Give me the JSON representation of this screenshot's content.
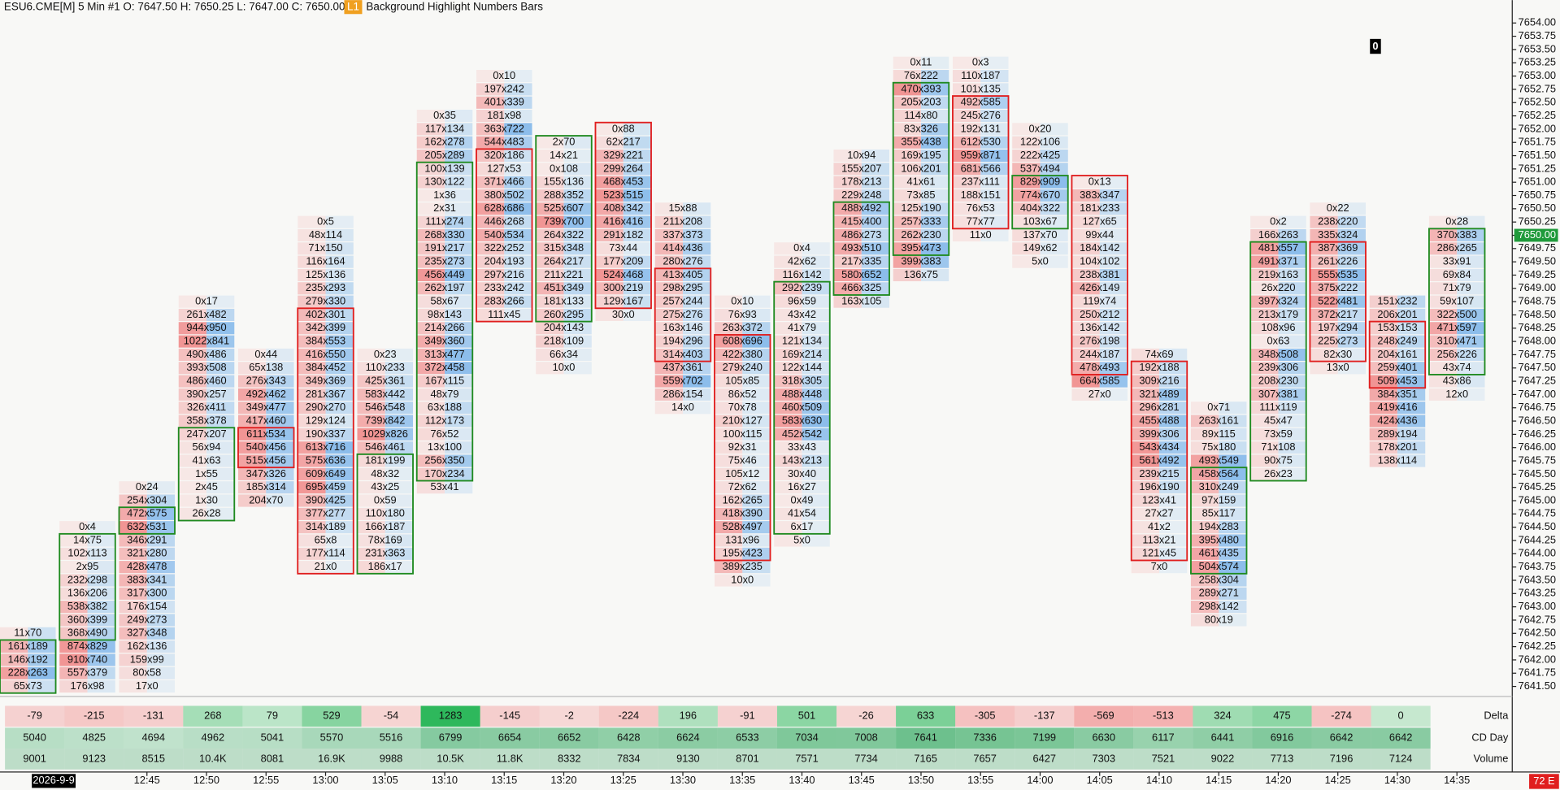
{
  "header": {
    "symbol": "ESU6.CME[M]  5 Min  #1 O: 7647.50 H: 7650.25 L: 7647.00 C: 7650.00",
    "badge": "L1",
    "study": "Background Highlight  Numbers Bars"
  },
  "marker": "0",
  "last_price": "7650.00",
  "status": "72 E",
  "date": "2026-9-9",
  "colors": {
    "up": "#1f8a1f",
    "down": "#e01e1e",
    "bid": "#f08a8a",
    "ask": "#7fb6ea"
  },
  "price_axis": [
    "7654.00",
    "7653.75",
    "7653.50",
    "7653.25",
    "7653.00",
    "7652.75",
    "7652.50",
    "7652.25",
    "7652.00",
    "7651.75",
    "7651.50",
    "7651.25",
    "7651.00",
    "7650.75",
    "7650.50",
    "7650.25",
    "7650.00",
    "7649.75",
    "7649.50",
    "7649.25",
    "7649.00",
    "7648.75",
    "7648.50",
    "7648.25",
    "7648.00",
    "7647.75",
    "7647.50",
    "7647.25",
    "7647.00",
    "7646.75",
    "7646.50",
    "7646.25",
    "7646.00",
    "7645.75",
    "7645.50",
    "7645.25",
    "7645.00",
    "7644.75",
    "7644.50",
    "7644.25",
    "7644.00",
    "7643.75",
    "7643.50",
    "7643.25",
    "7643.00",
    "7642.75",
    "7642.50",
    "7642.25",
    "7642.00",
    "7641.75",
    "7641.50"
  ],
  "times": [
    "12:45",
    "12:50",
    "12:55",
    "13:00",
    "13:05",
    "13:10",
    "13:15",
    "13:20",
    "13:25",
    "13:30",
    "13:35",
    "13:40",
    "13:45",
    "13:50",
    "13:55",
    "14:00",
    "14:05",
    "14:10",
    "14:15",
    "14:20",
    "14:25",
    "14:30",
    "14:35"
  ],
  "bars": [
    {
      "high": 7642.5,
      "dir": "up",
      "body": [
        7642.25,
        7641.5
      ],
      "cells": [
        "11x70",
        "161x189",
        "146x192",
        "228x263",
        "65x73"
      ]
    },
    {
      "high": 7644.5,
      "dir": "up",
      "body": [
        7644.25,
        7642.5
      ],
      "cells": [
        "0x4",
        "14x75",
        "102x113",
        "2x95",
        "232x298",
        "136x206",
        "538x382",
        "360x399",
        "368x490",
        "874x829",
        "910x740",
        "557x379",
        "176x98"
      ]
    },
    {
      "high": 7645.25,
      "dir": "up",
      "body": [
        7644.75,
        7644.5
      ],
      "cells": [
        "0x24",
        "254x304",
        "472x575",
        "632x531",
        "346x291",
        "321x280",
        "428x478",
        "383x341",
        "317x300",
        "176x154",
        "249x273",
        "327x348",
        "162x136",
        "159x99",
        "80x58",
        "17x0"
      ]
    },
    {
      "high": 7648.75,
      "dir": "up",
      "body": [
        7646.25,
        7644.75
      ],
      "cells": [
        "0x17",
        "261x482",
        "944x950",
        "1022x841",
        "490x486",
        "393x508",
        "486x460",
        "390x257",
        "326x411",
        "358x378",
        "247x207",
        "56x94",
        "41x63",
        "1x55",
        "2x45",
        "1x30",
        "26x28"
      ]
    },
    {
      "high": 7647.75,
      "dir": "down",
      "body": [
        7646.25,
        7645.75
      ],
      "cells": [
        "0x44",
        "65x138",
        "276x343",
        "492x462",
        "349x477",
        "417x460",
        "611x534",
        "540x456",
        "515x456",
        "347x326",
        "185x314",
        "204x70"
      ]
    },
    {
      "high": 7650.25,
      "dir": "down",
      "body": [
        7648.5,
        7643.75
      ],
      "cells": [
        "0x5",
        "48x114",
        "71x150",
        "116x164",
        "125x136",
        "235x293",
        "279x330",
        "402x301",
        "342x399",
        "384x553",
        "416x550",
        "384x452",
        "349x369",
        "281x367",
        "290x270",
        "129x124",
        "190x337",
        "613x716",
        "575x636",
        "609x649",
        "695x459",
        "390x425",
        "377x277",
        "314x189",
        "65x8",
        "177x114",
        "21x0"
      ]
    },
    {
      "high": 7647.75,
      "dir": "up",
      "body": [
        7645.75,
        7643.75
      ],
      "cells": [
        "0x23",
        "110x233",
        "425x361",
        "583x442",
        "546x548",
        "739x842",
        "1029x826",
        "546x461",
        "181x199",
        "48x32",
        "43x25",
        "0x59",
        "110x180",
        "166x187",
        "78x169",
        "231x363",
        "186x17"
      ]
    },
    {
      "high": 7652.25,
      "dir": "up",
      "body": [
        7651.25,
        7645.5
      ],
      "cells": [
        "0x35",
        "117x134",
        "162x278",
        "205x289",
        "100x139",
        "130x122",
        "1x36",
        "2x31",
        "111x274",
        "268x330",
        "191x217",
        "235x273",
        "456x449",
        "262x197",
        "58x67",
        "98x143",
        "214x266",
        "349x360",
        "313x477",
        "372x458",
        "167x115",
        "48x79",
        "63x188",
        "112x173",
        "76x52",
        "13x100",
        "256x350",
        "170x234",
        "53x41"
      ]
    },
    {
      "high": 7653,
      "dir": "down",
      "body": [
        7651.5,
        7648.5
      ],
      "cells": [
        "0x10",
        "197x242",
        "401x339",
        "181x98",
        "363x722",
        "544x483",
        "320x186",
        "127x53",
        "371x466",
        "380x502",
        "628x686",
        "446x268",
        "540x534",
        "322x252",
        "204x193",
        "297x216",
        "233x242",
        "283x266",
        "111x45"
      ]
    },
    {
      "high": 7651.75,
      "dir": "up",
      "body": [
        7651.75,
        7648.5
      ],
      "cells": [
        "2x70",
        "14x21",
        "0x108",
        "155x136",
        "288x352",
        "525x607",
        "739x700",
        "264x322",
        "315x348",
        "264x217",
        "211x221",
        "451x349",
        "181x133",
        "260x295",
        "204x143",
        "218x109",
        "66x34",
        "10x0"
      ]
    },
    {
      "high": 7652,
      "dir": "down",
      "body": [
        7652,
        7648.75
      ],
      "cells": [
        "0x88",
        "62x217",
        "329x221",
        "299x264",
        "468x453",
        "523x515",
        "408x342",
        "416x416",
        "291x182",
        "73x44",
        "177x209",
        "524x468",
        "300x219",
        "129x167",
        "30x0"
      ]
    },
    {
      "high": 7650.5,
      "dir": "down",
      "body": [
        7649.25,
        7647.75
      ],
      "cells": [
        "15x88",
        "211x208",
        "337x373",
        "414x436",
        "280x276",
        "413x405",
        "298x295",
        "257x244",
        "275x276",
        "163x146",
        "194x296",
        "314x403",
        "437x361",
        "559x702",
        "286x154",
        "14x0"
      ]
    },
    {
      "high": 7648.75,
      "dir": "down",
      "body": [
        7648,
        7644
      ],
      "cells": [
        "0x10",
        "76x93",
        "263x372",
        "608x696",
        "422x380",
        "279x240",
        "105x85",
        "86x52",
        "70x78",
        "210x127",
        "100x115",
        "92x31",
        "75x46",
        "105x12",
        "72x62",
        "162x265",
        "418x390",
        "528x497",
        "131x96",
        "195x423",
        "389x235",
        "10x0"
      ]
    },
    {
      "high": 7649.75,
      "dir": "up",
      "body": [
        7649,
        7644.5
      ],
      "cells": [
        "0x4",
        "42x62",
        "116x142",
        "292x239",
        "96x59",
        "43x42",
        "41x79",
        "121x134",
        "169x214",
        "122x144",
        "318x305",
        "488x448",
        "460x509",
        "583x630",
        "452x542",
        "33x43",
        "143x213",
        "30x40",
        "16x27",
        "0x49",
        "41x54",
        "6x17",
        "5x0"
      ]
    },
    {
      "high": 7651.5,
      "dir": "up",
      "body": [
        7650.5,
        7649
      ],
      "cells": [
        "10x94",
        "155x207",
        "178x213",
        "229x248",
        "488x492",
        "415x400",
        "486x273",
        "493x510",
        "217x335",
        "580x652",
        "466x325",
        "163x105"
      ]
    },
    {
      "high": 7653.25,
      "dir": "up",
      "body": [
        7652.75,
        7649.75
      ],
      "cells": [
        "0x11",
        "76x222",
        "470x393",
        "205x203",
        "114x80",
        "83x326",
        "355x438",
        "169x195",
        "106x201",
        "41x61",
        "73x85",
        "125x190",
        "257x333",
        "262x230",
        "395x473",
        "399x383",
        "136x75"
      ]
    },
    {
      "high": 7653.25,
      "dir": "down",
      "body": [
        7652.5,
        7650.25
      ],
      "cells": [
        "0x3",
        "110x187",
        "101x135",
        "492x585",
        "245x276",
        "192x131",
        "612x530",
        "959x871",
        "681x566",
        "237x111",
        "188x151",
        "76x53",
        "77x77",
        "11x0"
      ]
    },
    {
      "high": 7652,
      "dir": "up",
      "body": [
        7651,
        7650.25
      ],
      "cells": [
        "0x20",
        "122x106",
        "222x425",
        "537x494",
        "829x909",
        "774x670",
        "404x322",
        "103x67",
        "137x70",
        "149x62",
        "5x0"
      ]
    },
    {
      "high": 7651,
      "dir": "down",
      "body": [
        7651,
        7647.5
      ],
      "cells": [
        "0x13",
        "383x347",
        "181x233",
        "127x65",
        "99x44",
        "184x142",
        "104x102",
        "238x381",
        "426x149",
        "119x74",
        "250x212",
        "136x142",
        "276x198",
        "244x187",
        "478x493",
        "664x585",
        "27x0"
      ]
    },
    {
      "high": 7647.75,
      "dir": "down",
      "body": [
        7647.5,
        7644
      ],
      "cells": [
        "74x69",
        "192x188",
        "309x216",
        "321x489",
        "296x281",
        "455x488",
        "399x306",
        "543x434",
        "561x492",
        "239x215",
        "196x190",
        "123x41",
        "27x27",
        "41x2",
        "113x21",
        "121x45",
        "7x0"
      ]
    },
    {
      "high": 7646.75,
      "dir": "up",
      "body": [
        7645.5,
        7643.75
      ],
      "cells": [
        "0x71",
        "263x161",
        "89x115",
        "75x180",
        "493x549",
        "458x564",
        "310x249",
        "97x159",
        "85x117",
        "194x283",
        "395x480",
        "461x435",
        "504x574",
        "258x304",
        "289x271",
        "298x142",
        "80x19"
      ]
    },
    {
      "high": 7650.25,
      "dir": "up",
      "body": [
        7649.75,
        7645.5
      ],
      "cells": [
        "0x2",
        "166x263",
        "481x557",
        "491x371",
        "219x163",
        "26x220",
        "397x324",
        "213x179",
        "108x96",
        "0x63",
        "348x508",
        "239x306",
        "208x230",
        "307x381",
        "111x119",
        "45x47",
        "73x59",
        "71x108",
        "90x75",
        "26x23"
      ]
    },
    {
      "high": 7650.5,
      "dir": "down",
      "body": [
        7649.75,
        7647.75
      ],
      "cells": [
        "0x22",
        "238x220",
        "335x324",
        "387x369",
        "261x226",
        "555x535",
        "375x222",
        "522x481",
        "372x217",
        "197x294",
        "225x273",
        "82x30",
        "13x0"
      ]
    },
    {
      "high": 7648.75,
      "dir": "down",
      "body": [
        7648.25,
        7647.25
      ],
      "cells": [
        "151x232",
        "206x201",
        "153x153",
        "248x249",
        "204x161",
        "259x401",
        "509x453",
        "384x351",
        "419x416",
        "424x436",
        "289x194",
        "178x201",
        "138x114"
      ]
    },
    {
      "high": 7650.25,
      "dir": "up",
      "body": [
        7650,
        7647.5
      ],
      "cells": [
        "0x28",
        "370x383",
        "286x265",
        "33x91",
        "69x84",
        "71x79",
        "59x107",
        "322x500",
        "471x597",
        "310x471",
        "256x226",
        "43x74",
        "43x86",
        "12x0"
      ]
    }
  ],
  "table": {
    "rows": [
      {
        "name": "Delta",
        "values": [
          "-79",
          "-215",
          "-131",
          "268",
          "79",
          "529",
          "-54",
          "1283",
          "-145",
          "-2",
          "-224",
          "196",
          "-91",
          "501",
          "-26",
          "633",
          "-305",
          "-137",
          "-569",
          "-513",
          "324",
          "475",
          "-274",
          "0"
        ]
      },
      {
        "name": "CD Day",
        "values": [
          "5040",
          "4825",
          "4694",
          "4962",
          "5041",
          "5570",
          "5516",
          "6799",
          "6654",
          "6652",
          "6428",
          "6624",
          "6533",
          "7034",
          "7008",
          "7641",
          "7336",
          "7199",
          "6630",
          "6117",
          "6441",
          "6916",
          "6642",
          "6642"
        ]
      },
      {
        "name": "Volume",
        "values": [
          "9001",
          "9123",
          "8515",
          "10.4K",
          "8081",
          "16.9K",
          "9988",
          "10.5K",
          "11.8K",
          "8332",
          "7834",
          "9130",
          "8701",
          "7571",
          "7734",
          "7165",
          "7657",
          "6427",
          "7303",
          "7521",
          "9022",
          "7713",
          "7196",
          "7124"
        ]
      }
    ]
  }
}
